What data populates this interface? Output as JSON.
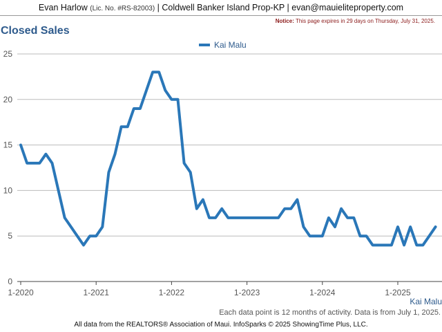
{
  "header": {
    "agent_name": "Evan Harlow",
    "license": "(Lic. No. #RS-82003)",
    "sep1": " | ",
    "brokerage": "Coldwell Banker Island Prop-KP",
    "sep2": " | ",
    "email": "evan@mauieliteproperty.com"
  },
  "page_title": "Closed Sales",
  "notice": {
    "label": "Notice:",
    "text": " This page expires in 29 days on Thursday, July 31, 2025."
  },
  "footnote": "Each data point is 12 months of activity. Data is from July 1, 2025.",
  "copyright": "All data from the REALTORS® Association of Maui. InfoSparks © 2025 ShowingTime Plus, LLC.",
  "colors": {
    "series": "#2a77b8",
    "title": "#2d5a8c",
    "notice": "#8b1a1a",
    "grid": "#bbbbbb"
  },
  "chart_data": {
    "type": "line",
    "legend_position": "top-center",
    "grid": true,
    "x_start": "2020-01",
    "x_interval": "monthly",
    "xticks": [
      "1-2020",
      "1-2021",
      "1-2022",
      "1-2023",
      "1-2024",
      "1-2025"
    ],
    "yticks": [
      0,
      5,
      10,
      15,
      20,
      25
    ],
    "ylim": [
      0,
      25
    ],
    "series": [
      {
        "name": "Kai Malu",
        "values": [
          15,
          13,
          13,
          13,
          14,
          13,
          10,
          7,
          6,
          5,
          4,
          5,
          5,
          6,
          12,
          14,
          17,
          17,
          19,
          19,
          21,
          23,
          23,
          21,
          20,
          20,
          13,
          12,
          8,
          9,
          7,
          7,
          8,
          7,
          7,
          7,
          7,
          7,
          7,
          7,
          7,
          7,
          8,
          8,
          9,
          6,
          5,
          5,
          5,
          7,
          6,
          8,
          7,
          7,
          5,
          5,
          4,
          4,
          4,
          4,
          6,
          4,
          6,
          4,
          4,
          5,
          6
        ]
      }
    ]
  }
}
